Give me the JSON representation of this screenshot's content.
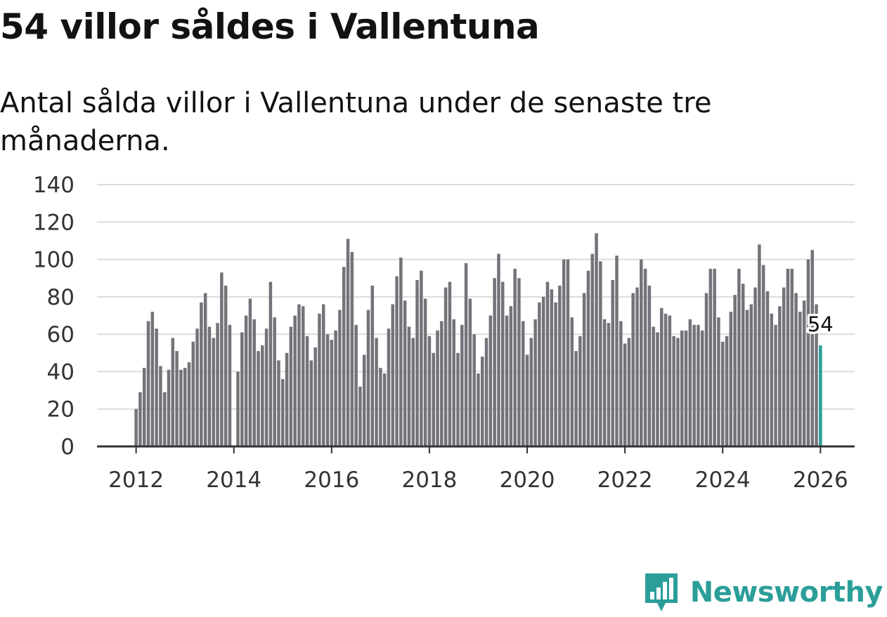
{
  "title": "54 villor såldes i Vallentuna",
  "subtitle": "Antal sålda villor i Vallentuna under de senaste tre månaderna.",
  "brand": {
    "name": "Newsworthy",
    "icon": "newsworthy-logo-icon"
  },
  "colors": {
    "bar": "#74737a",
    "highlight": "#2a9d96",
    "brand": "#2b9e99"
  },
  "chart_data": {
    "type": "bar",
    "title": "54 villor såldes i Vallentuna",
    "xlabel": "",
    "ylabel": "",
    "ylim": [
      0,
      140
    ],
    "yticks": [
      0,
      20,
      40,
      60,
      80,
      100,
      120,
      140
    ],
    "xlim": [
      2011.2,
      2026.7
    ],
    "xticks": [
      2012,
      2014,
      2016,
      2018,
      2020,
      2022,
      2024,
      2026
    ],
    "grid": true,
    "start_year": 2012,
    "start_month": 1,
    "values": [
      20,
      29,
      42,
      67,
      72,
      63,
      43,
      29,
      41,
      58,
      51,
      41,
      42,
      45,
      56,
      63,
      77,
      82,
      64,
      58,
      66,
      93,
      86,
      65,
      0,
      40,
      61,
      70,
      79,
      68,
      51,
      54,
      63,
      88,
      69,
      46,
      36,
      50,
      64,
      70,
      76,
      75,
      59,
      46,
      53,
      71,
      76,
      60,
      57,
      62,
      73,
      96,
      111,
      104,
      65,
      32,
      49,
      73,
      86,
      58,
      42,
      39,
      63,
      76,
      91,
      101,
      78,
      64,
      58,
      89,
      94,
      79,
      59,
      50,
      62,
      67,
      85,
      88,
      68,
      50,
      65,
      98,
      79,
      60,
      39,
      48,
      58,
      70,
      90,
      103,
      88,
      70,
      75,
      95,
      90,
      67,
      49,
      58,
      68,
      77,
      80,
      88,
      84,
      77,
      86,
      100,
      100,
      69,
      51,
      59,
      82,
      94,
      103,
      114,
      99,
      68,
      66,
      89,
      102,
      67,
      55,
      58,
      82,
      85,
      100,
      95,
      86,
      64,
      61,
      74,
      71,
      70,
      59,
      58,
      62,
      62,
      68,
      65,
      65,
      62,
      82,
      95,
      95,
      69,
      56,
      59,
      72,
      81,
      95,
      87,
      73,
      76,
      85,
      108,
      97,
      83,
      71,
      65,
      75,
      85,
      95,
      95,
      82,
      72,
      78,
      100,
      105,
      76,
      54
    ],
    "highlight_index": 168,
    "annotation": "54"
  }
}
